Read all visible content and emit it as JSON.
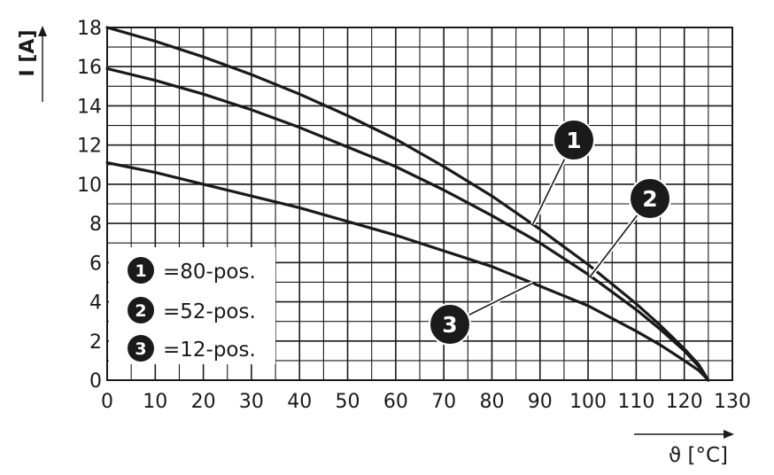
{
  "chart_data": {
    "type": "line",
    "title": "",
    "xlabel": "ϑ [°C]",
    "ylabel": "I [A]",
    "xlim": [
      0,
      130
    ],
    "ylim": [
      0,
      18
    ],
    "x_ticks": [
      0,
      10,
      20,
      30,
      40,
      50,
      60,
      70,
      80,
      90,
      100,
      110,
      120,
      130
    ],
    "y_ticks": [
      0,
      2,
      4,
      6,
      8,
      10,
      12,
      14,
      16,
      18
    ],
    "grid": true,
    "legend_position": "bottom-left",
    "series": [
      {
        "marker": "1",
        "name": "=80-pos.",
        "x": [
          0,
          10,
          20,
          30,
          40,
          50,
          60,
          70,
          80,
          90,
          100,
          110,
          115,
          120,
          123,
          125
        ],
        "y": [
          18.0,
          17.3,
          16.5,
          15.6,
          14.6,
          13.5,
          12.3,
          10.9,
          9.4,
          7.7,
          5.9,
          3.9,
          2.8,
          1.6,
          0.8,
          0
        ]
      },
      {
        "marker": "2",
        "name": "=52-pos.",
        "x": [
          0,
          10,
          20,
          30,
          40,
          50,
          60,
          70,
          80,
          90,
          100,
          110,
          115,
          120,
          123,
          125
        ],
        "y": [
          15.9,
          15.3,
          14.6,
          13.8,
          12.9,
          11.9,
          10.9,
          9.7,
          8.4,
          7.0,
          5.4,
          3.6,
          2.6,
          1.5,
          0.7,
          0
        ]
      },
      {
        "marker": "3",
        "name": "=12-pos.",
        "x": [
          0,
          10,
          20,
          30,
          40,
          50,
          60,
          70,
          80,
          90,
          100,
          110,
          115,
          120,
          123,
          125
        ],
        "y": [
          11.1,
          10.6,
          10.0,
          9.4,
          8.8,
          8.1,
          7.4,
          6.6,
          5.8,
          4.8,
          3.8,
          2.5,
          1.8,
          1.0,
          0.5,
          0
        ]
      }
    ],
    "callouts": [
      {
        "label": "1",
        "series_index": 0,
        "at_x": 88.5
      },
      {
        "label": "2",
        "series_index": 1,
        "at_x": 100.5
      },
      {
        "label": "3",
        "series_index": 2,
        "at_x": 88.5
      }
    ]
  }
}
